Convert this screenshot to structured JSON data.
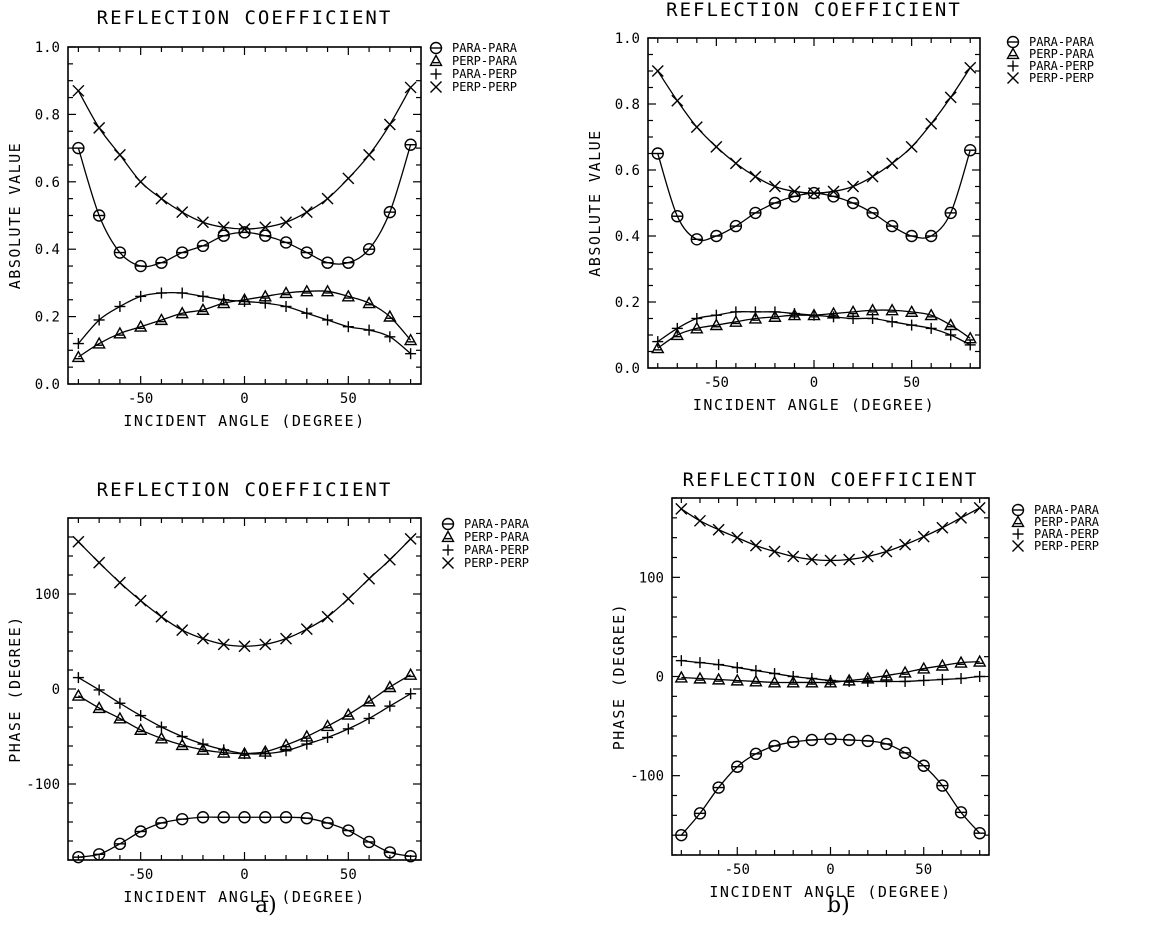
{
  "figure": {
    "caption_a": "a)",
    "caption_b": "b)"
  },
  "legend_symbols": {
    "PARA-PARA": "circle",
    "PERP-PARA": "triangle",
    "PARA-PERP": "plus",
    "PERP-PERP": "cross"
  },
  "chart_data": [
    {
      "id": "a-magnitude",
      "type": "line",
      "title": "REFLECTION COEFFICIENT",
      "xlabel": "INCIDENT ANGLE (DEGREE)",
      "ylabel": "ABSOLUTE VALUE",
      "xlim": [
        -85,
        85
      ],
      "ylim": [
        0,
        1.0
      ],
      "xticks": [
        -50,
        0,
        50
      ],
      "xtick_labels": [
        "-50",
        "0",
        "50"
      ],
      "yticks": [
        0,
        0.2,
        0.4,
        0.6,
        0.8,
        1.0
      ],
      "ytick_labels": [
        "0.0",
        "0.2",
        "0.4",
        "0.6",
        "0.8",
        "1.0"
      ],
      "legend_position": "top-right",
      "series": [
        {
          "name": "PARA-PARA",
          "x": [
            -80,
            -70,
            -60,
            -50,
            -40,
            -30,
            -20,
            -10,
            0,
            10,
            20,
            30,
            40,
            50,
            60,
            70,
            80
          ],
          "values": [
            0.7,
            0.5,
            0.39,
            0.35,
            0.36,
            0.39,
            0.41,
            0.44,
            0.45,
            0.44,
            0.42,
            0.39,
            0.36,
            0.36,
            0.4,
            0.51,
            0.71
          ]
        },
        {
          "name": "PERP-PARA",
          "x": [
            -80,
            -70,
            -60,
            -50,
            -40,
            -30,
            -20,
            -10,
            0,
            10,
            20,
            30,
            40,
            50,
            60,
            70,
            80
          ],
          "values": [
            0.08,
            0.12,
            0.15,
            0.17,
            0.19,
            0.21,
            0.22,
            0.24,
            0.25,
            0.26,
            0.27,
            0.275,
            0.275,
            0.26,
            0.24,
            0.2,
            0.13
          ]
        },
        {
          "name": "PARA-PERP",
          "x": [
            -80,
            -70,
            -60,
            -50,
            -40,
            -30,
            -20,
            -10,
            0,
            10,
            20,
            30,
            40,
            50,
            60,
            70,
            80
          ],
          "values": [
            0.12,
            0.19,
            0.23,
            0.26,
            0.27,
            0.27,
            0.26,
            0.25,
            0.245,
            0.24,
            0.23,
            0.21,
            0.19,
            0.17,
            0.16,
            0.14,
            0.09
          ]
        },
        {
          "name": "PERP-PERP",
          "x": [
            -80,
            -70,
            -60,
            -50,
            -40,
            -30,
            -20,
            -10,
            0,
            10,
            20,
            30,
            40,
            50,
            60,
            70,
            80
          ],
          "values": [
            0.87,
            0.76,
            0.68,
            0.6,
            0.55,
            0.51,
            0.48,
            0.465,
            0.46,
            0.465,
            0.48,
            0.51,
            0.55,
            0.61,
            0.68,
            0.77,
            0.88
          ]
        }
      ]
    },
    {
      "id": "b-magnitude",
      "type": "line",
      "title": "REFLECTION COEFFICIENT",
      "xlabel": "INCIDENT ANGLE (DEGREE)",
      "ylabel": "ABSOLUTE VALUE",
      "xlim": [
        -85,
        85
      ],
      "ylim": [
        0,
        1.0
      ],
      "xticks": [
        -50,
        0,
        50
      ],
      "xtick_labels": [
        "-50",
        "0",
        "50"
      ],
      "yticks": [
        0,
        0.2,
        0.4,
        0.6,
        0.8,
        1.0
      ],
      "ytick_labels": [
        "0.0",
        "0.2",
        "0.4",
        "0.6",
        "0.8",
        "1.0"
      ],
      "legend_position": "top-right",
      "series": [
        {
          "name": "PARA-PARA",
          "x": [
            -80,
            -70,
            -60,
            -50,
            -40,
            -30,
            -20,
            -10,
            0,
            10,
            20,
            30,
            40,
            50,
            60,
            70,
            80
          ],
          "values": [
            0.65,
            0.46,
            0.39,
            0.4,
            0.43,
            0.47,
            0.5,
            0.52,
            0.53,
            0.52,
            0.5,
            0.47,
            0.43,
            0.4,
            0.4,
            0.47,
            0.66
          ]
        },
        {
          "name": "PERP-PARA",
          "x": [
            -80,
            -70,
            -60,
            -50,
            -40,
            -30,
            -20,
            -10,
            0,
            10,
            20,
            30,
            40,
            50,
            60,
            70,
            80
          ],
          "values": [
            0.06,
            0.1,
            0.12,
            0.13,
            0.14,
            0.15,
            0.155,
            0.16,
            0.16,
            0.165,
            0.17,
            0.175,
            0.175,
            0.17,
            0.16,
            0.13,
            0.09
          ]
        },
        {
          "name": "PARA-PERP",
          "x": [
            -80,
            -70,
            -60,
            -50,
            -40,
            -30,
            -20,
            -10,
            0,
            10,
            20,
            30,
            40,
            50,
            60,
            70,
            80
          ],
          "values": [
            0.08,
            0.12,
            0.15,
            0.16,
            0.17,
            0.17,
            0.17,
            0.165,
            0.16,
            0.155,
            0.15,
            0.15,
            0.14,
            0.13,
            0.12,
            0.1,
            0.07
          ]
        },
        {
          "name": "PERP-PERP",
          "x": [
            -80,
            -70,
            -60,
            -50,
            -40,
            -30,
            -20,
            -10,
            0,
            10,
            20,
            30,
            40,
            50,
            60,
            70,
            80
          ],
          "values": [
            0.9,
            0.81,
            0.73,
            0.67,
            0.62,
            0.58,
            0.55,
            0.535,
            0.53,
            0.535,
            0.55,
            0.58,
            0.62,
            0.67,
            0.74,
            0.82,
            0.91
          ]
        }
      ]
    },
    {
      "id": "a-phase",
      "type": "line",
      "title": "REFLECTION COEFFICIENT",
      "xlabel": "INCIDENT ANGLE (DEGREE)",
      "ylabel": "PHASE (DEGREE)",
      "xlim": [
        -85,
        85
      ],
      "ylim": [
        -180,
        180
      ],
      "xticks": [
        -50,
        0,
        50
      ],
      "xtick_labels": [
        "-50",
        "0",
        "50"
      ],
      "yticks": [
        -100,
        0,
        100
      ],
      "ytick_labels": [
        "-100",
        "0",
        "100"
      ],
      "legend_position": "top-right",
      "series": [
        {
          "name": "PARA-PARA",
          "x": [
            -80,
            -70,
            -60,
            -50,
            -40,
            -30,
            -20,
            -10,
            0,
            10,
            20,
            30,
            40,
            50,
            60,
            70,
            80
          ],
          "values": [
            -177,
            -174,
            -163,
            -150,
            -141,
            -137,
            -135,
            -135,
            -135,
            -135,
            -135,
            -136,
            -141,
            -149,
            -161,
            -172,
            -176
          ]
        },
        {
          "name": "PERP-PARA",
          "x": [
            -80,
            -70,
            -60,
            -50,
            -40,
            -30,
            -20,
            -10,
            0,
            10,
            20,
            30,
            40,
            50,
            60,
            70,
            80
          ],
          "values": [
            -7,
            -20,
            -31,
            -43,
            -52,
            -59,
            -64,
            -67,
            -68,
            -66,
            -59,
            -50,
            -39,
            -27,
            -13,
            2,
            15
          ]
        },
        {
          "name": "PARA-PERP",
          "x": [
            -80,
            -70,
            -60,
            -50,
            -40,
            -30,
            -20,
            -10,
            0,
            10,
            20,
            30,
            40,
            50,
            60,
            70,
            80
          ],
          "values": [
            12,
            -1,
            -15,
            -28,
            -40,
            -50,
            -58,
            -64,
            -68,
            -68,
            -65,
            -58,
            -51,
            -42,
            -31,
            -18,
            -5
          ]
        },
        {
          "name": "PERP-PERP",
          "x": [
            -80,
            -70,
            -60,
            -50,
            -40,
            -30,
            -20,
            -10,
            0,
            10,
            20,
            30,
            40,
            50,
            60,
            70,
            80
          ],
          "values": [
            155,
            133,
            112,
            93,
            76,
            62,
            53,
            47,
            45,
            47,
            53,
            63,
            76,
            95,
            116,
            136,
            158
          ]
        }
      ]
    },
    {
      "id": "b-phase",
      "type": "line",
      "title": "REFLECTION COEFFICIENT",
      "xlabel": "INCIDENT ANGLE (DEGREE)",
      "ylabel": "PHASE (DEGREE)",
      "xlim": [
        -85,
        85
      ],
      "ylim": [
        -180,
        180
      ],
      "xticks": [
        -50,
        0,
        50
      ],
      "xtick_labels": [
        "-50",
        "0",
        "50"
      ],
      "yticks": [
        -100,
        0,
        100
      ],
      "ytick_labels": [
        "-100",
        "0",
        "100"
      ],
      "legend_position": "top-right",
      "series": [
        {
          "name": "PARA-PARA",
          "x": [
            -80,
            -70,
            -60,
            -50,
            -40,
            -30,
            -20,
            -10,
            0,
            10,
            20,
            30,
            40,
            50,
            60,
            70,
            80
          ],
          "values": [
            -160,
            -138,
            -112,
            -91,
            -78,
            -70,
            -66,
            -64,
            -63,
            -64,
            -65,
            -68,
            -77,
            -90,
            -110,
            -137,
            -158
          ]
        },
        {
          "name": "PERP-PARA",
          "x": [
            -80,
            -70,
            -60,
            -50,
            -40,
            -30,
            -20,
            -10,
            0,
            10,
            20,
            30,
            40,
            50,
            60,
            70,
            80
          ],
          "values": [
            -1,
            -2,
            -3,
            -4,
            -5,
            -6,
            -6,
            -6,
            -6,
            -4,
            -2,
            1,
            4,
            8,
            11,
            14,
            15
          ]
        },
        {
          "name": "PARA-PERP",
          "x": [
            -80,
            -70,
            -60,
            -50,
            -40,
            -30,
            -20,
            -10,
            0,
            10,
            20,
            30,
            40,
            50,
            60,
            70,
            80
          ],
          "values": [
            16,
            14,
            12,
            9,
            6,
            3,
            0,
            -2,
            -4,
            -5,
            -5,
            -5,
            -5,
            -4,
            -3,
            -2,
            0
          ]
        },
        {
          "name": "PERP-PERP",
          "x": [
            -80,
            -70,
            -60,
            -50,
            -40,
            -30,
            -20,
            -10,
            0,
            10,
            20,
            30,
            40,
            50,
            60,
            70,
            80
          ],
          "values": [
            169,
            157,
            148,
            140,
            132,
            126,
            121,
            118,
            117,
            118,
            121,
            126,
            133,
            141,
            150,
            160,
            170
          ]
        }
      ]
    }
  ]
}
